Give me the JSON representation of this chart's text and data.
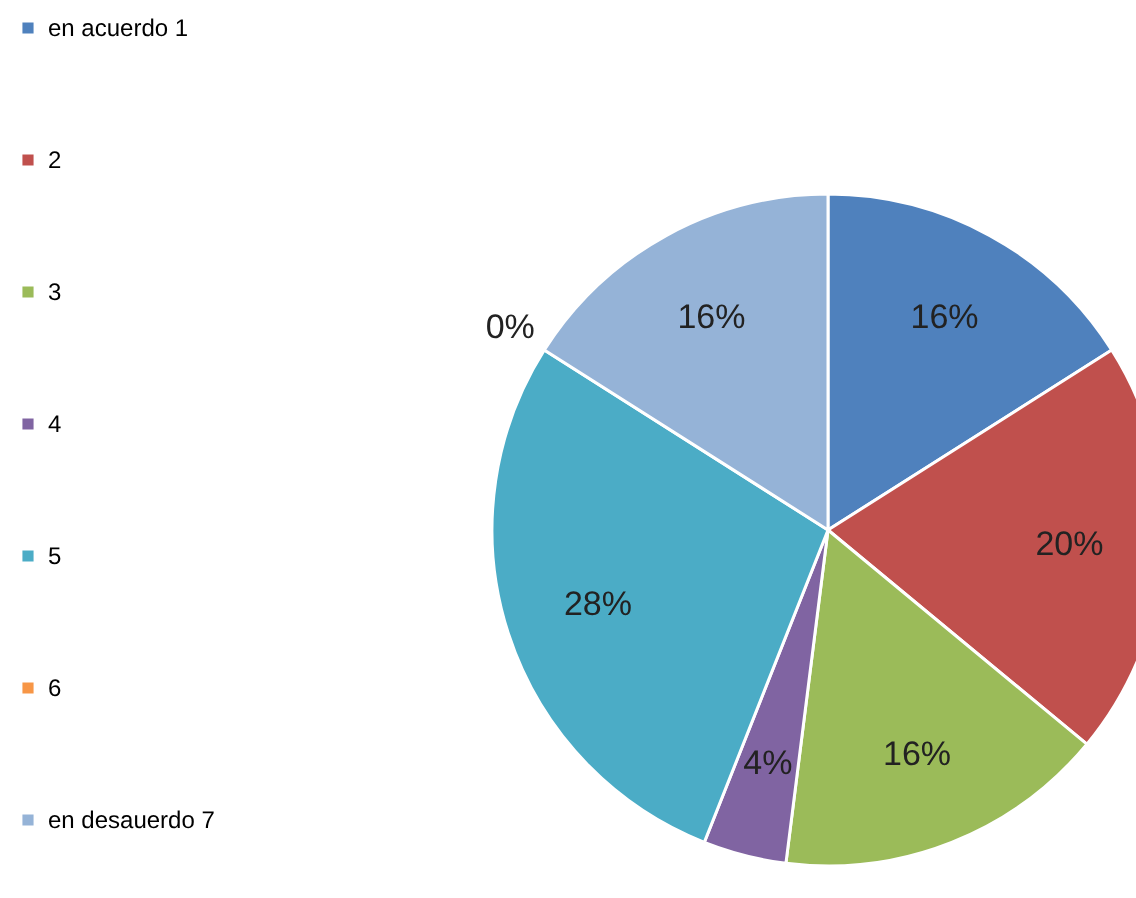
{
  "chart_data": {
    "type": "pie",
    "categories": [
      "en acuerdo 1",
      "2",
      "3",
      "4",
      "5",
      "6",
      "en desauerdo 7"
    ],
    "values": [
      16,
      20,
      16,
      4,
      28,
      0,
      16
    ],
    "colors": [
      "#4f81bd",
      "#c0504d",
      "#9bbb59",
      "#8064a2",
      "#4bacc6",
      "#f79646",
      "#95b3d7"
    ],
    "value_labels": [
      "16%",
      "20%",
      "16%",
      "4%",
      "28%",
      "0%",
      "16%"
    ],
    "legend": "left"
  }
}
